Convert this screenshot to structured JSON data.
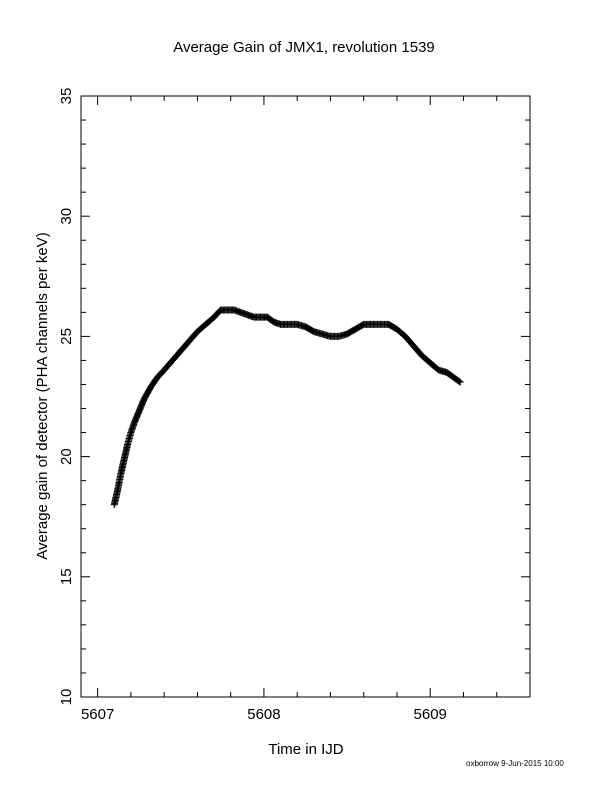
{
  "chart_data": {
    "type": "scatter",
    "title": "Average Gain of JMX1, revolution 1539",
    "xlabel": "Time in IJD",
    "ylabel": "Average gain of detector (PHA channels per keV)",
    "xlim": [
      5606.9,
      5609.6
    ],
    "ylim": [
      10,
      35
    ],
    "xticks": [
      5607,
      5608,
      5609
    ],
    "yticks": [
      10,
      15,
      20,
      25,
      30,
      35
    ],
    "grid": false,
    "marker": "+",
    "series": [
      {
        "points": [
          [
            5607.1,
            18.0
          ],
          [
            5607.12,
            18.6
          ],
          [
            5607.14,
            19.3
          ],
          [
            5607.16,
            19.9
          ],
          [
            5607.18,
            20.5
          ],
          [
            5607.2,
            21.0
          ],
          [
            5607.22,
            21.4
          ],
          [
            5607.25,
            21.9
          ],
          [
            5607.28,
            22.4
          ],
          [
            5607.32,
            22.9
          ],
          [
            5607.36,
            23.3
          ],
          [
            5607.4,
            23.6
          ],
          [
            5607.45,
            24.0
          ],
          [
            5607.5,
            24.4
          ],
          [
            5607.55,
            24.8
          ],
          [
            5607.6,
            25.2
          ],
          [
            5607.65,
            25.5
          ],
          [
            5607.7,
            25.8
          ],
          [
            5607.74,
            26.1
          ],
          [
            5607.78,
            26.1
          ],
          [
            5607.82,
            26.1
          ],
          [
            5607.86,
            26.0
          ],
          [
            5607.9,
            25.9
          ],
          [
            5607.94,
            25.8
          ],
          [
            5607.98,
            25.8
          ],
          [
            5608.02,
            25.8
          ],
          [
            5608.06,
            25.6
          ],
          [
            5608.1,
            25.5
          ],
          [
            5608.15,
            25.5
          ],
          [
            5608.2,
            25.5
          ],
          [
            5608.25,
            25.4
          ],
          [
            5608.3,
            25.2
          ],
          [
            5608.35,
            25.1
          ],
          [
            5608.4,
            25.0
          ],
          [
            5608.45,
            25.0
          ],
          [
            5608.5,
            25.1
          ],
          [
            5608.55,
            25.3
          ],
          [
            5608.6,
            25.5
          ],
          [
            5608.65,
            25.5
          ],
          [
            5608.7,
            25.5
          ],
          [
            5608.75,
            25.5
          ],
          [
            5608.8,
            25.3
          ],
          [
            5608.85,
            25.0
          ],
          [
            5608.9,
            24.6
          ],
          [
            5608.95,
            24.2
          ],
          [
            5609.0,
            23.9
          ],
          [
            5609.05,
            23.6
          ],
          [
            5609.1,
            23.5
          ],
          [
            5609.14,
            23.3
          ],
          [
            5609.18,
            23.1
          ]
        ]
      }
    ]
  },
  "footer": {
    "credit": "oxborrow  9-Jun-2015 10:00"
  }
}
